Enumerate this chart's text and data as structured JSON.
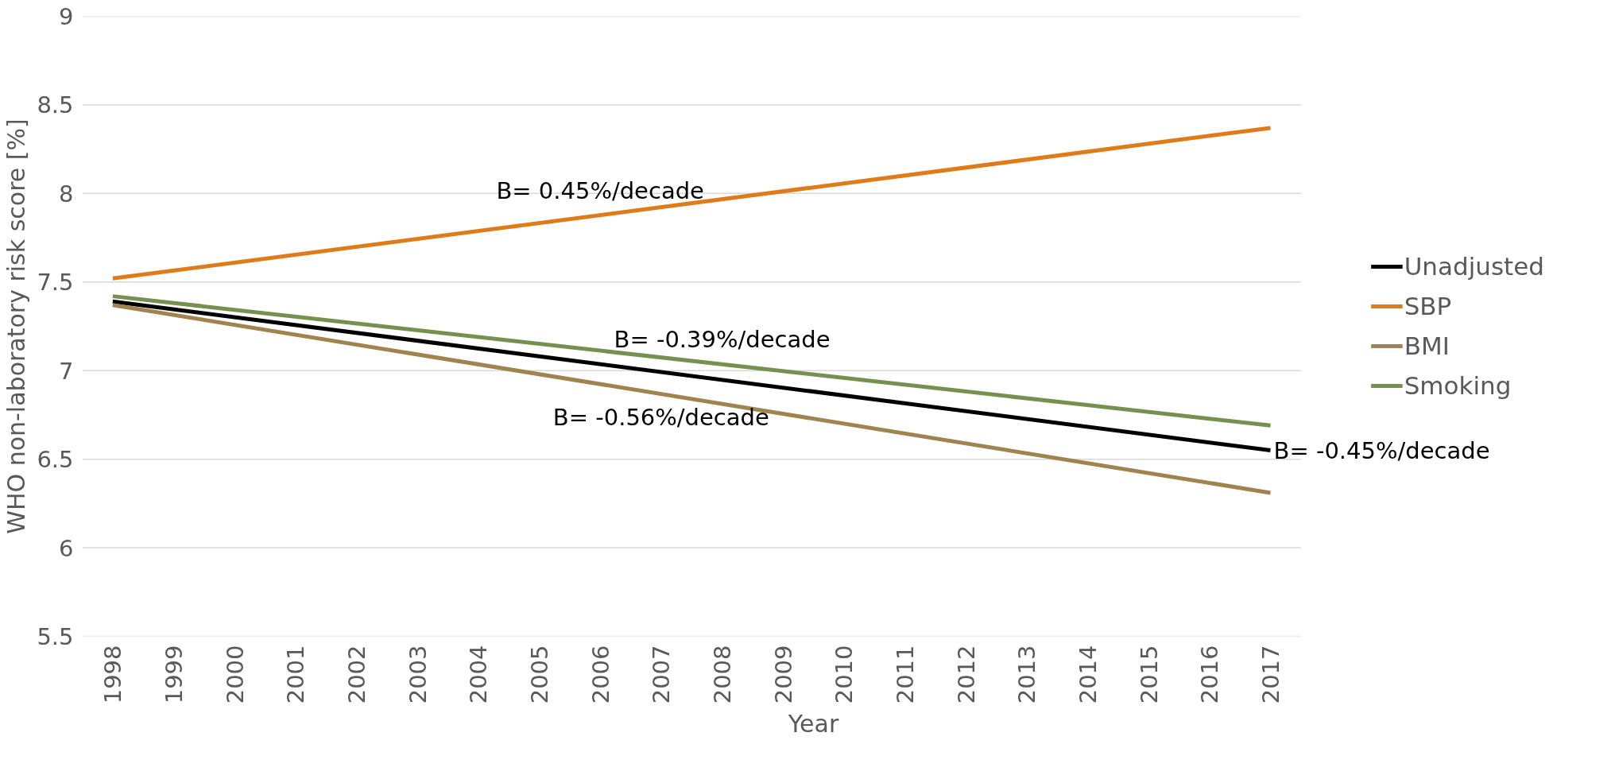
{
  "chart_data": {
    "type": "line",
    "xlabel": "Year",
    "ylabel": "WHO non-laboratory risk score [%]",
    "x": [
      1998,
      2017
    ],
    "xlim": [
      1997.5,
      2017.5
    ],
    "xticks": [
      1998,
      1999,
      2000,
      2001,
      2002,
      2003,
      2004,
      2005,
      2006,
      2007,
      2008,
      2009,
      2010,
      2011,
      2012,
      2013,
      2014,
      2015,
      2016,
      2017
    ],
    "ylim": [
      5.5,
      9
    ],
    "yticks": [
      5.5,
      6,
      6.5,
      7,
      7.5,
      8,
      8.5,
      9
    ],
    "grid": "y",
    "legend": "right",
    "marker": "none",
    "line_style": "solid",
    "series": [
      {
        "name": "Unadjusted",
        "color": "#000000",
        "values": [
          7.39,
          6.55
        ]
      },
      {
        "name": "SBP",
        "color": "#e07b1a",
        "values": [
          7.52,
          8.37
        ]
      },
      {
        "name": "BMI",
        "color": "#a08450",
        "values": [
          7.37,
          6.31
        ]
      },
      {
        "name": "Smoking",
        "color": "#76904f",
        "values": [
          7.42,
          6.69
        ]
      }
    ],
    "annotations": [
      {
        "text": "B= 0.45%/decade",
        "x": 2006,
        "y": 7.878
      },
      {
        "text": "B= -0.39%/decade",
        "x": 2008,
        "y": 7.036
      },
      {
        "text": "B= -0.56%/decade",
        "x": 2007,
        "y": 6.868
      },
      {
        "text": "B= -0.45%/decade",
        "x": 2017,
        "y": 6.55
      }
    ]
  }
}
